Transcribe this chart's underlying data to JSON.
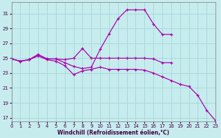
{
  "xlabel": "Windchill (Refroidissement éolien,°C)",
  "background_color": "#c6ecee",
  "grid_color": "#aad8da",
  "line_color": "#aa00aa",
  "xlim": [
    0,
    23
  ],
  "ylim": [
    16.5,
    32.5
  ],
  "yticks": [
    17,
    19,
    21,
    23,
    25,
    27,
    29,
    31
  ],
  "xticks": [
    0,
    1,
    2,
    3,
    4,
    5,
    6,
    7,
    8,
    9,
    10,
    11,
    12,
    13,
    14,
    15,
    16,
    17,
    18,
    19,
    20,
    21,
    22,
    23
  ],
  "series": [
    {
      "x": [
        0,
        1,
        2,
        3,
        4,
        5,
        6,
        7,
        8,
        9,
        10,
        11,
        12,
        13,
        14,
        15,
        16,
        17,
        18
      ],
      "y": [
        24.9,
        24.6,
        24.8,
        25.5,
        24.9,
        24.9,
        24.8,
        25.0,
        26.3,
        25.0,
        25.0,
        25.0,
        25.0,
        25.0,
        25.0,
        25.0,
        24.9,
        24.4,
        24.4
      ]
    },
    {
      "x": [
        0,
        1,
        2,
        3,
        4,
        5,
        6,
        7,
        8,
        9,
        10,
        11,
        12,
        13,
        14,
        15,
        16,
        17,
        18
      ],
      "y": [
        24.9,
        24.6,
        24.8,
        25.5,
        24.9,
        24.9,
        24.4,
        23.9,
        23.6,
        23.8,
        26.2,
        28.3,
        30.3,
        31.5,
        31.5,
        31.5,
        29.6,
        28.2,
        28.2
      ]
    },
    {
      "x": [
        0,
        1,
        2,
        3,
        4,
        5,
        6,
        7,
        8,
        9,
        10,
        11,
        12,
        13,
        14,
        15,
        16,
        17,
        18,
        19,
        20,
        21,
        22,
        23
      ],
      "y": [
        24.9,
        24.6,
        24.8,
        25.3,
        24.8,
        24.6,
        24.0,
        22.8,
        23.3,
        23.5,
        23.8,
        23.5,
        23.5,
        23.5,
        23.5,
        23.4,
        23.0,
        22.5,
        22.0,
        21.5,
        21.2,
        20.0,
        18.0,
        16.6
      ]
    }
  ]
}
